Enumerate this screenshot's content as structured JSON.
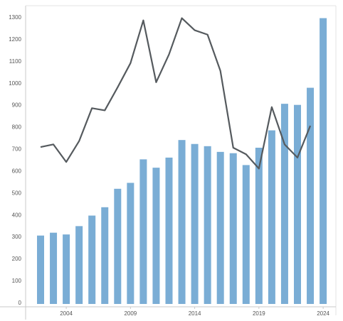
{
  "chart_data": {
    "type": "bar",
    "title": "",
    "xlabel": "",
    "ylabel": "",
    "ylim": [
      0,
      1300
    ],
    "y_ticks": [
      0,
      100,
      200,
      300,
      400,
      500,
      600,
      700,
      800,
      900,
      1000,
      1100,
      1200,
      1300
    ],
    "x_tick_labels": [
      "2004",
      "2009",
      "2014",
      "2019",
      "2024"
    ],
    "x": [
      2002,
      2003,
      2004,
      2005,
      2006,
      2007,
      2008,
      2009,
      2010,
      2011,
      2012,
      2013,
      2014,
      2015,
      2016,
      2017,
      2018,
      2019,
      2020,
      2021,
      2022,
      2023
    ],
    "grid": false,
    "series": [
      {
        "type": "bar",
        "color": "#7aadd5",
        "values": [
          305,
          318,
          310,
          348,
          396,
          434,
          518,
          545,
          652,
          614,
          660,
          740,
          722,
          712,
          686,
          680,
          626,
          705,
          784,
          905,
          900,
          978
        ]
      },
      {
        "type": "line",
        "color": "#555a5e",
        "values": [
          708,
          720,
          640,
          735,
          885,
          875,
          980,
          1090,
          1285,
          1003,
          1130,
          1295,
          1240,
          1220,
          1055,
          705,
          675,
          610,
          890,
          720,
          660,
          805
        ]
      }
    ],
    "extra_bar": {
      "x": 2024,
      "value": 1295
    }
  }
}
